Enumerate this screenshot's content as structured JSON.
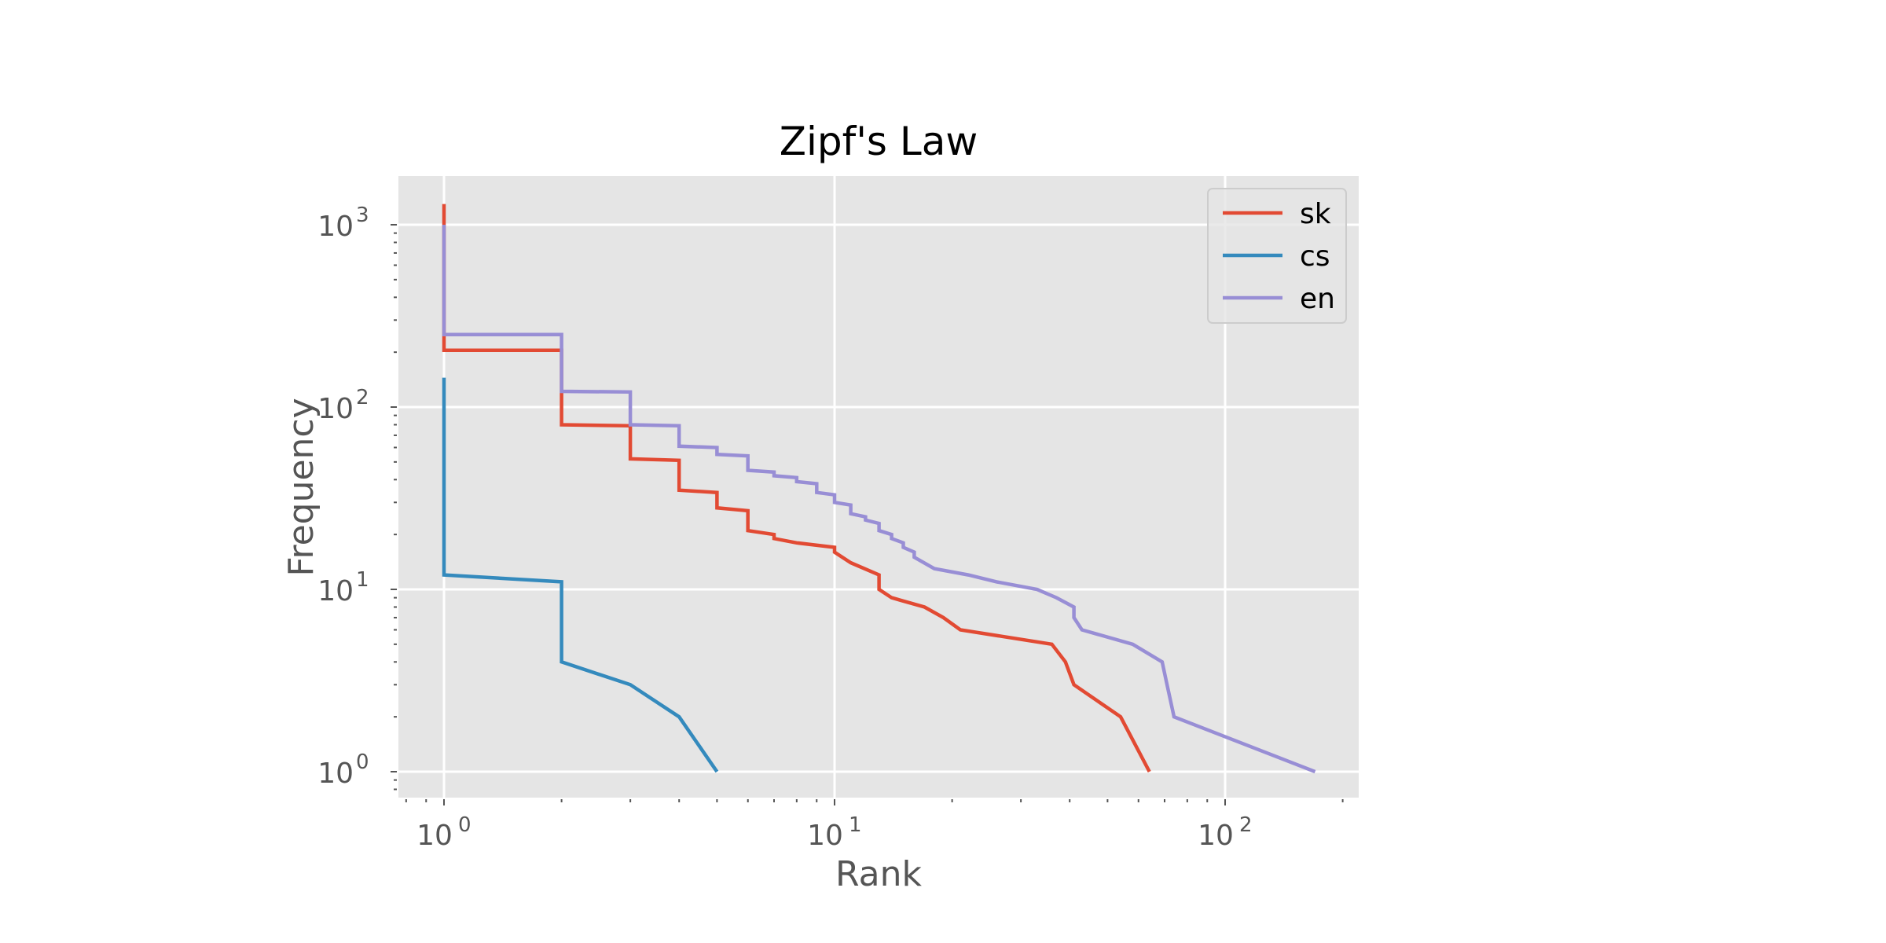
{
  "chart_data": {
    "type": "line",
    "title": "Zipf's Law",
    "xlabel": "Rank",
    "ylabel": "Frequency",
    "xscale": "log",
    "yscale": "log",
    "xlim": [
      0.8,
      210
    ],
    "ylim": [
      0.8,
      1950
    ],
    "grid": true,
    "legend_position": "upper right",
    "x_ticks": [
      {
        "value": 1,
        "base": "10",
        "exp": "0"
      },
      {
        "value": 10,
        "base": "10",
        "exp": "1"
      },
      {
        "value": 100,
        "base": "10",
        "exp": "2"
      }
    ],
    "y_ticks": [
      {
        "value": 1,
        "base": "10",
        "exp": "0"
      },
      {
        "value": 10,
        "base": "10",
        "exp": "1"
      },
      {
        "value": 100,
        "base": "10",
        "exp": "2"
      },
      {
        "value": 1000,
        "base": "10",
        "exp": "3"
      }
    ],
    "series": [
      {
        "name": "sk",
        "color": "#E24A33",
        "points": [
          [
            1,
            1300
          ],
          [
            1,
            205
          ],
          [
            2,
            205
          ],
          [
            2,
            80
          ],
          [
            3,
            79
          ],
          [
            3,
            52
          ],
          [
            4,
            51
          ],
          [
            4,
            35
          ],
          [
            5,
            34
          ],
          [
            5,
            28
          ],
          [
            6,
            27
          ],
          [
            6,
            21
          ],
          [
            7,
            20
          ],
          [
            7,
            19
          ],
          [
            8,
            18
          ],
          [
            10,
            17
          ],
          [
            10,
            16
          ],
          [
            11,
            14
          ],
          [
            13,
            12
          ],
          [
            13,
            10
          ],
          [
            14,
            9
          ],
          [
            17,
            8
          ],
          [
            19,
            7
          ],
          [
            21,
            6
          ],
          [
            36,
            5
          ],
          [
            39,
            4
          ],
          [
            41,
            3
          ],
          [
            54,
            2
          ],
          [
            64,
            1
          ]
        ]
      },
      {
        "name": "cs",
        "color": "#348ABD",
        "points": [
          [
            1,
            145
          ],
          [
            1,
            12
          ],
          [
            2,
            11
          ],
          [
            2,
            4
          ],
          [
            3,
            3
          ],
          [
            4,
            2
          ],
          [
            5,
            1
          ]
        ]
      },
      {
        "name": "en",
        "color": "#988ED5",
        "points": [
          [
            1,
            1000
          ],
          [
            1,
            250
          ],
          [
            2,
            250
          ],
          [
            2,
            122
          ],
          [
            3,
            121
          ],
          [
            3,
            80
          ],
          [
            4,
            79
          ],
          [
            4,
            61
          ],
          [
            5,
            60
          ],
          [
            5,
            55
          ],
          [
            6,
            54
          ],
          [
            6,
            45
          ],
          [
            7,
            44
          ],
          [
            7,
            42
          ],
          [
            8,
            41
          ],
          [
            8,
            39
          ],
          [
            9,
            38
          ],
          [
            9,
            34
          ],
          [
            10,
            33
          ],
          [
            10,
            30
          ],
          [
            11,
            29
          ],
          [
            11,
            26
          ],
          [
            12,
            25
          ],
          [
            12,
            24
          ],
          [
            13,
            23
          ],
          [
            13,
            21
          ],
          [
            14,
            20
          ],
          [
            14,
            19
          ],
          [
            15,
            18
          ],
          [
            15,
            17
          ],
          [
            16,
            16
          ],
          [
            16,
            15
          ],
          [
            18,
            13
          ],
          [
            22,
            12
          ],
          [
            26,
            11
          ],
          [
            33,
            10
          ],
          [
            37,
            9
          ],
          [
            41,
            8
          ],
          [
            41,
            7
          ],
          [
            43,
            6
          ],
          [
            58,
            5
          ],
          [
            69,
            4
          ],
          [
            71,
            3
          ],
          [
            74,
            2
          ],
          [
            170,
            1
          ]
        ]
      }
    ]
  },
  "style": {
    "plot_bg": "#E5E5E5",
    "grid_color": "#FFFFFF",
    "tick_color": "#555555"
  }
}
